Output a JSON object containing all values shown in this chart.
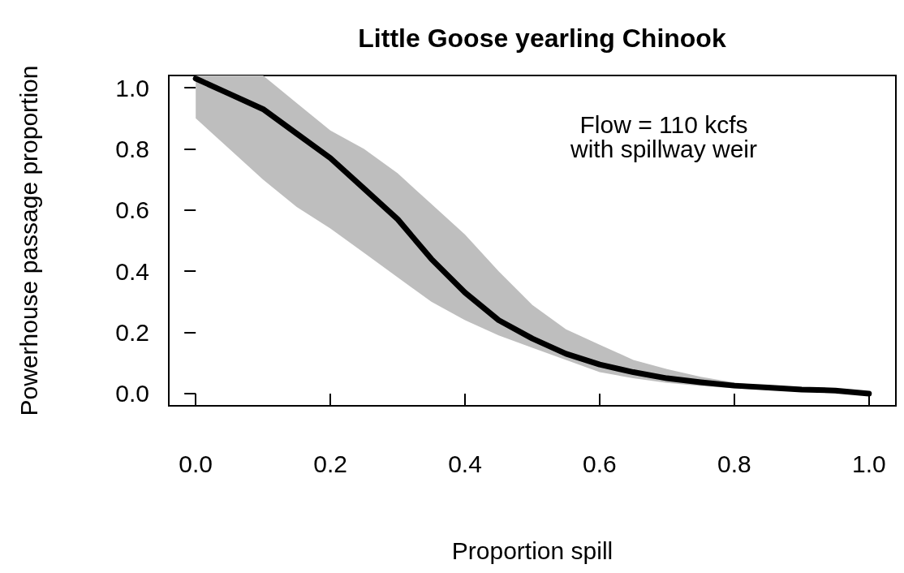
{
  "chart_data": {
    "type": "line",
    "title": "Little Goose yearling Chinook",
    "xlabel": "Proportion spill",
    "ylabel": "Powerhouse passage proportion",
    "annotations": [
      "Flow = 110 kcfs\nwith spillway weir"
    ],
    "x": [
      0,
      0.05,
      0.1,
      0.15,
      0.2,
      0.25,
      0.3,
      0.35,
      0.4,
      0.45,
      0.5,
      0.55,
      0.6,
      0.65,
      0.7,
      0.75,
      0.8,
      0.85,
      0.9,
      0.95,
      1.0
    ],
    "series": [
      {
        "color": "#000000",
        "values": [
          1.03,
          0.98,
          0.93,
          0.85,
          0.77,
          0.67,
          0.57,
          0.44,
          0.33,
          0.24,
          0.18,
          0.13,
          0.095,
          0.07,
          0.05,
          0.037,
          0.026,
          0.02,
          0.013,
          0.01,
          0.0
        ],
        "lower": [
          0.9,
          0.8,
          0.7,
          0.61,
          0.54,
          0.46,
          0.38,
          0.3,
          0.24,
          0.19,
          0.15,
          0.11,
          0.07,
          0.05,
          0.035,
          0.025,
          0.017,
          0.012,
          0.008,
          0.004,
          0.0
        ],
        "upper": [
          1.04,
          1.04,
          1.04,
          0.95,
          0.86,
          0.8,
          0.72,
          0.62,
          0.52,
          0.4,
          0.29,
          0.21,
          0.16,
          0.11,
          0.08,
          0.055,
          0.036,
          0.024,
          0.013,
          0.006,
          0.0
        ]
      }
    ],
    "xlim": [
      -0.04,
      1.04
    ],
    "ylim": [
      -0.04,
      1.04
    ],
    "xticks": [
      {
        "value": 0,
        "label": "0.0"
      },
      {
        "value": 0.2,
        "label": "0.2"
      },
      {
        "value": 0.4,
        "label": "0.4"
      },
      {
        "value": 0.6,
        "label": "0.6"
      },
      {
        "value": 0.8,
        "label": "0.8"
      },
      {
        "value": 1,
        "label": "1.0"
      }
    ],
    "yticks": [
      {
        "value": 0,
        "label": "0.0"
      },
      {
        "value": 0.2,
        "label": "0.2"
      },
      {
        "value": 0.4,
        "label": "0.4"
      },
      {
        "value": 0.6,
        "label": "0.6"
      },
      {
        "value": 0.8,
        "label": "0.8"
      },
      {
        "value": 1,
        "label": "1.0"
      }
    ],
    "grid": false,
    "marker": "none",
    "line_style": "solid"
  }
}
